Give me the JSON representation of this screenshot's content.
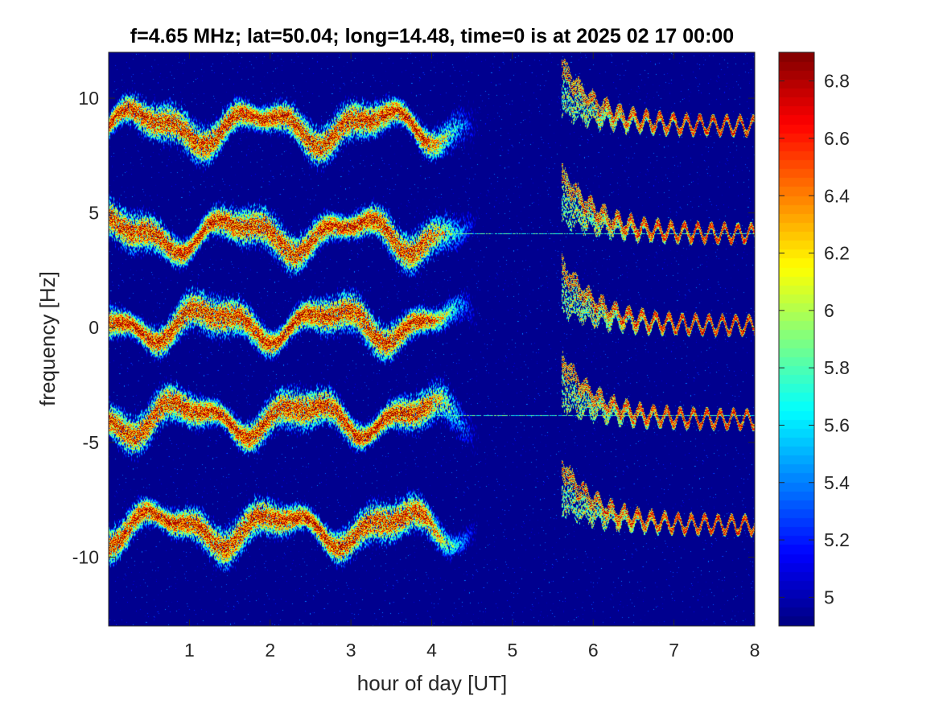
{
  "chart_data": {
    "type": "heatmap",
    "title": "f=4.65 MHz;  lat=50.04; long=14.48, time=0 is at 2025 02 17 00:00",
    "xlabel": "hour of day [UT]",
    "ylabel": "frequency [Hz]",
    "xlim": [
      0,
      8
    ],
    "ylim": [
      -13,
      12
    ],
    "xticks": [
      1,
      2,
      3,
      4,
      5,
      6,
      7,
      8
    ],
    "xtick_labels": [
      "1",
      "2",
      "3",
      "4",
      "5",
      "6",
      "7",
      "8"
    ],
    "yticks": [
      10,
      5,
      0,
      -5,
      -10
    ],
    "ytick_labels": [
      "10",
      "5",
      "0",
      "-5",
      "-10"
    ],
    "colorbar": {
      "colormap": "jet",
      "clim": [
        4.9,
        6.9
      ],
      "ticks": [
        6.8,
        6.6,
        6.4,
        6.2,
        6,
        5.8,
        5.6,
        5.4,
        5.2,
        5
      ],
      "tick_labels": [
        "6.8",
        "6.6",
        "6.4",
        "6.2",
        "6",
        "5.8",
        "5.6",
        "5.4",
        "5.2",
        "5"
      ]
    },
    "background_value": 4.93,
    "early_traces": {
      "x_range": [
        0,
        3.9
      ],
      "centers": [
        8.8,
        4.1,
        0.2,
        -3.9,
        -8.7
      ],
      "wobble_amplitude": 0.6,
      "peak_value": 6.85
    },
    "late_traces": {
      "x_range": [
        5.6,
        8
      ],
      "asymptotes": [
        8.8,
        4.1,
        0.1,
        -4.0,
        -8.6
      ],
      "initial_offset": 2.6,
      "decay_hours": 0.45,
      "peak_value": 6.85
    },
    "carrier_lines": [
      {
        "y": 4.1,
        "x_range": [
          3.9,
          8
        ]
      },
      {
        "y": -3.8,
        "x_range": [
          3.9,
          8
        ]
      }
    ]
  }
}
